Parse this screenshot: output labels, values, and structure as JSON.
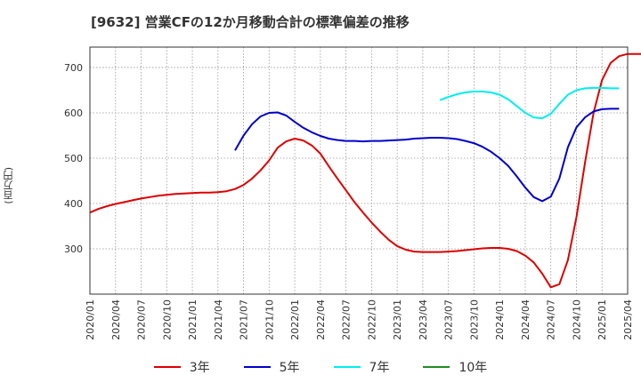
{
  "title": "[9632]  営業CFの12か月移動合計の標準偏差の推移",
  "chart_data": {
    "type": "line",
    "title": "[9632]  営業CFの12か月移動合計の標準偏差の推移",
    "ylabel": "(百万円)",
    "xlabel": "",
    "ylim": [
      200,
      745
    ],
    "yticks": [
      300,
      400,
      500,
      600,
      700
    ],
    "xticks": [
      "2020/01",
      "2020/04",
      "2020/07",
      "2020/10",
      "2021/01",
      "2021/04",
      "2021/07",
      "2021/10",
      "2022/01",
      "2022/04",
      "2022/07",
      "2022/10",
      "2023/01",
      "2023/04",
      "2023/07",
      "2023/10",
      "2024/01",
      "2024/04",
      "2024/07",
      "2024/10",
      "2025/01",
      "2025/04"
    ],
    "grid": true,
    "legend_position": "bottom",
    "series": [
      {
        "name": "3年",
        "color": "#dd0000",
        "start": "2020/01",
        "values": [
          380,
          388,
          394,
          399,
          403,
          407,
          411,
          414,
          417,
          419,
          421,
          422,
          423,
          424,
          424,
          425,
          427,
          432,
          441,
          455,
          473,
          495,
          523,
          537,
          543,
          539,
          528,
          510,
          482,
          455,
          429,
          403,
          380,
          358,
          338,
          320,
          306,
          298,
          294,
          293,
          293,
          293,
          294,
          295,
          297,
          299,
          301,
          302,
          302,
          300,
          295,
          285,
          270,
          245,
          215,
          222,
          275,
          370,
          490,
          600,
          672,
          710,
          725,
          730,
          730,
          730
        ]
      },
      {
        "name": "5年",
        "color": "#0000cc",
        "start": "2021/06",
        "values": [
          517,
          550,
          575,
          592,
          600,
          601,
          594,
          580,
          567,
          557,
          549,
          543,
          540,
          538,
          538,
          537,
          538,
          538,
          539,
          540,
          541,
          543,
          544,
          545,
          545,
          544,
          542,
          538,
          533,
          525,
          514,
          500,
          483,
          460,
          435,
          414,
          405,
          415,
          455,
          524,
          568,
          590,
          603,
          608,
          609,
          609
        ]
      },
      {
        "name": "7年",
        "color": "#00eeee",
        "start": "2023/06",
        "values": [
          628,
          635,
          641,
          645,
          647,
          647,
          645,
          640,
          630,
          615,
          600,
          590,
          588,
          598,
          620,
          640,
          650,
          654,
          655,
          655,
          654,
          654
        ]
      },
      {
        "name": "10年",
        "color": "#228b22",
        "start": "",
        "values": []
      }
    ]
  }
}
